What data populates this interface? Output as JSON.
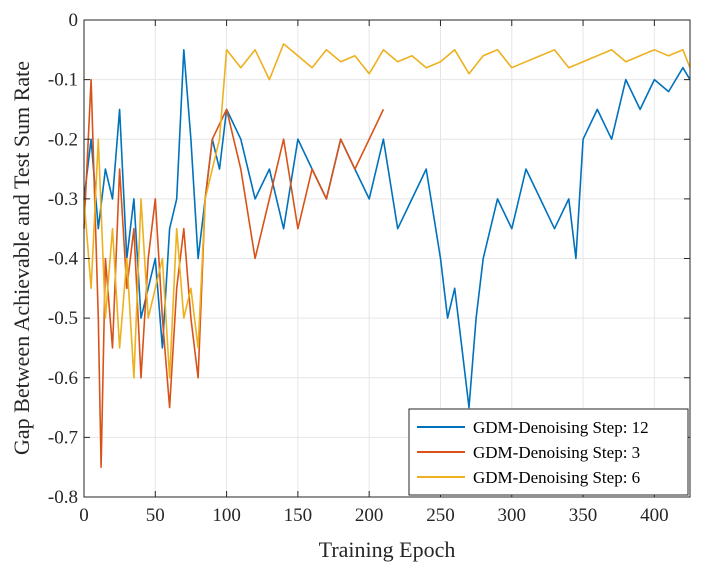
{
  "chart_data": {
    "type": "line",
    "title": "",
    "xlabel": "Training Epoch",
    "ylabel": "Gap Between Achievable and Test Sum Rate",
    "xlim": [
      0,
      425
    ],
    "ylim": [
      -0.8,
      0
    ],
    "xticks": [
      0,
      50,
      100,
      150,
      200,
      250,
      300,
      350,
      400
    ],
    "yticks": [
      -0.8,
      -0.7,
      -0.6,
      -0.5,
      -0.4,
      -0.3,
      -0.2,
      -0.1,
      0
    ],
    "xtick_labels": [
      "0",
      "50",
      "100",
      "150",
      "200",
      "250",
      "300",
      "350",
      "400"
    ],
    "ytick_labels": [
      "-0.8",
      "-0.7",
      "-0.6",
      "-0.5",
      "-0.4",
      "-0.3",
      "-0.2",
      "-0.1",
      "0"
    ],
    "grid": true,
    "legend": "bottom-right",
    "series": [
      {
        "name": "GDM-Denoising Step: 12",
        "color": "#0072BD",
        "x": [
          0,
          5,
          10,
          15,
          20,
          25,
          30,
          35,
          40,
          45,
          50,
          55,
          60,
          65,
          70,
          75,
          80,
          85,
          90,
          95,
          100,
          110,
          120,
          130,
          140,
          150,
          160,
          170,
          180,
          190,
          200,
          210,
          220,
          230,
          240,
          250,
          255,
          260,
          265,
          270,
          275,
          280,
          290,
          300,
          310,
          320,
          330,
          340,
          345,
          350,
          360,
          370,
          380,
          390,
          400,
          410,
          420,
          425
        ],
        "y": [
          -0.3,
          -0.2,
          -0.35,
          -0.25,
          -0.3,
          -0.15,
          -0.4,
          -0.3,
          -0.5,
          -0.45,
          -0.4,
          -0.55,
          -0.35,
          -0.3,
          -0.05,
          -0.2,
          -0.4,
          -0.3,
          -0.2,
          -0.25,
          -0.15,
          -0.2,
          -0.3,
          -0.25,
          -0.35,
          -0.2,
          -0.25,
          -0.3,
          -0.2,
          -0.25,
          -0.3,
          -0.2,
          -0.35,
          -0.3,
          -0.25,
          -0.4,
          -0.5,
          -0.45,
          -0.55,
          -0.65,
          -0.5,
          -0.4,
          -0.3,
          -0.35,
          -0.25,
          -0.3,
          -0.35,
          -0.3,
          -0.4,
          -0.2,
          -0.15,
          -0.2,
          -0.1,
          -0.15,
          -0.1,
          -0.12,
          -0.08,
          -0.1
        ]
      },
      {
        "name": "GDM-Denoising Step: 3",
        "color": "#D95319",
        "x": [
          0,
          5,
          10,
          12,
          15,
          20,
          25,
          30,
          35,
          40,
          45,
          50,
          55,
          60,
          65,
          70,
          75,
          80,
          85,
          90,
          100,
          110,
          120,
          130,
          140,
          150,
          160,
          170,
          180,
          190,
          200,
          210
        ],
        "y": [
          -0.35,
          -0.1,
          -0.5,
          -0.75,
          -0.4,
          -0.55,
          -0.25,
          -0.45,
          -0.35,
          -0.6,
          -0.4,
          -0.3,
          -0.5,
          -0.65,
          -0.45,
          -0.35,
          -0.5,
          -0.6,
          -0.3,
          -0.2,
          -0.15,
          -0.25,
          -0.4,
          -0.3,
          -0.2,
          -0.35,
          -0.25,
          -0.3,
          -0.2,
          -0.25,
          -0.2,
          -0.15
        ]
      },
      {
        "name": "GDM-Denoising Step: 6",
        "color": "#EDB120",
        "x": [
          0,
          5,
          10,
          15,
          20,
          25,
          30,
          35,
          40,
          45,
          50,
          55,
          60,
          65,
          70,
          75,
          80,
          85,
          90,
          95,
          100,
          110,
          120,
          130,
          140,
          150,
          160,
          170,
          180,
          190,
          200,
          210,
          220,
          230,
          240,
          250,
          260,
          270,
          280,
          290,
          300,
          310,
          320,
          330,
          340,
          350,
          360,
          370,
          380,
          390,
          400,
          410,
          420,
          425
        ],
        "y": [
          -0.3,
          -0.45,
          -0.2,
          -0.5,
          -0.35,
          -0.55,
          -0.4,
          -0.6,
          -0.3,
          -0.5,
          -0.45,
          -0.4,
          -0.6,
          -0.35,
          -0.5,
          -0.45,
          -0.55,
          -0.3,
          -0.25,
          -0.2,
          -0.05,
          -0.08,
          -0.05,
          -0.1,
          -0.04,
          -0.06,
          -0.08,
          -0.05,
          -0.07,
          -0.06,
          -0.09,
          -0.05,
          -0.07,
          -0.06,
          -0.08,
          -0.07,
          -0.05,
          -0.09,
          -0.06,
          -0.05,
          -0.08,
          -0.07,
          -0.06,
          -0.05,
          -0.08,
          -0.07,
          -0.06,
          -0.05,
          -0.07,
          -0.06,
          -0.05,
          -0.06,
          -0.05,
          -0.08
        ]
      }
    ]
  }
}
